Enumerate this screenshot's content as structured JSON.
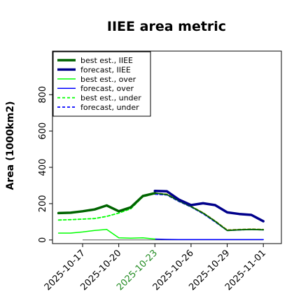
{
  "chart_data": {
    "type": "line",
    "title": "IIEE area metric",
    "xlabel": "",
    "ylabel": "Area (1000km2)",
    "ylim": [
      -20,
      1040
    ],
    "yticks": [
      0,
      200,
      400,
      600,
      800
    ],
    "x_dates": [
      "2025-10-15",
      "2025-10-16",
      "2025-10-17",
      "2025-10-18",
      "2025-10-19",
      "2025-10-20",
      "2025-10-21",
      "2025-10-22",
      "2025-10-23",
      "2025-10-24",
      "2025-10-25",
      "2025-10-26",
      "2025-10-27",
      "2025-10-28",
      "2025-10-29",
      "2025-10-30",
      "2025-10-31",
      "2025-11-01"
    ],
    "xlim": [
      "2025-10-14T12:00",
      "2025-11-02T12:00"
    ],
    "xticks": [
      {
        "date": "2025-10-17",
        "label": "2025-10-17",
        "color": "#000000"
      },
      {
        "date": "2025-10-20",
        "label": "2025-10-20",
        "color": "#000000"
      },
      {
        "date": "2025-10-23",
        "label": "2025-10-23",
        "color": "#228B22"
      },
      {
        "date": "2025-10-26",
        "label": "2025-10-26",
        "color": "#000000"
      },
      {
        "date": "2025-10-29",
        "label": "2025-10-29",
        "color": "#000000"
      },
      {
        "date": "2025-11-01",
        "label": "2025-11-01",
        "color": "#000000"
      }
    ],
    "legend_position": "top-left",
    "series": [
      {
        "name": "best est., IIEE",
        "color": "#006400",
        "style": "solid",
        "weight": "thick",
        "dates": [
          "2025-10-15",
          "2025-10-16",
          "2025-10-17",
          "2025-10-18",
          "2025-10-19",
          "2025-10-20",
          "2025-10-21",
          "2025-10-22",
          "2025-10-23"
        ],
        "values": [
          148,
          150,
          158,
          168,
          190,
          158,
          180,
          242,
          258
        ]
      },
      {
        "name": "forecast, IIEE",
        "color": "#00008B",
        "style": "solid",
        "weight": "thick",
        "dates": [
          "2025-10-23",
          "2025-10-24",
          "2025-10-25",
          "2025-10-26",
          "2025-10-27",
          "2025-10-28",
          "2025-10-29",
          "2025-10-30",
          "2025-10-31",
          "2025-11-01"
        ],
        "values": [
          270,
          268,
          222,
          192,
          202,
          192,
          152,
          143,
          138,
          103
        ]
      },
      {
        "name": "best est., over",
        "color": "#00ff00",
        "style": "solid",
        "weight": "thin",
        "dates": [
          "2025-10-15",
          "2025-10-16",
          "2025-10-17",
          "2025-10-18",
          "2025-10-19",
          "2025-10-20",
          "2025-10-21",
          "2025-10-22",
          "2025-10-23"
        ],
        "values": [
          38,
          38,
          44,
          52,
          58,
          12,
          10,
          12,
          5
        ]
      },
      {
        "name": "forecast, over",
        "color": "#0000ff",
        "style": "solid",
        "weight": "thin",
        "dates": [
          "2025-10-23",
          "2025-10-24",
          "2025-10-25",
          "2025-10-26",
          "2025-10-27",
          "2025-10-28",
          "2025-10-29",
          "2025-10-30",
          "2025-10-31",
          "2025-11-01"
        ],
        "values": [
          5,
          3,
          2,
          2,
          2,
          2,
          2,
          2,
          2,
          2
        ]
      },
      {
        "name": "best est., under",
        "color": "#00ff00",
        "style": "dashed",
        "weight": "normal",
        "dates": [
          "2025-10-15",
          "2025-10-16",
          "2025-10-17",
          "2025-10-18",
          "2025-10-19",
          "2025-10-20",
          "2025-10-21",
          "2025-10-22",
          "2025-10-23"
        ],
        "values": [
          110,
          112,
          115,
          118,
          130,
          148,
          172,
          238,
          255
        ]
      },
      {
        "name": "forecast, under",
        "color": "#0000ff",
        "style": "dashed",
        "weight": "normal",
        "dates": [
          "2025-10-23",
          "2025-10-24",
          "2025-10-25",
          "2025-10-26",
          "2025-10-27",
          "2025-10-28",
          "2025-10-29",
          "2025-10-30",
          "2025-10-31",
          "2025-11-01"
        ],
        "values": [
          252,
          248,
          212,
          182,
          145,
          100,
          52,
          55,
          58,
          56
        ]
      },
      {
        "name": "",
        "color": "#8B8B00",
        "style": "dashed",
        "weight": "normal",
        "dates": [
          "2025-10-23",
          "2025-10-24",
          "2025-10-25",
          "2025-10-26",
          "2025-10-27",
          "2025-10-28",
          "2025-10-29",
          "2025-10-30",
          "2025-10-31",
          "2025-11-01"
        ],
        "values": [
          258,
          252,
          218,
          186,
          150,
          105,
          55,
          58,
          60,
          58
        ]
      },
      {
        "name": "",
        "color": "#006400",
        "style": "solid",
        "weight": "normal",
        "dates": [
          "2025-10-23",
          "2025-10-24",
          "2025-10-25",
          "2025-10-26",
          "2025-10-27",
          "2025-10-28",
          "2025-10-29",
          "2025-10-30",
          "2025-10-31",
          "2025-11-01"
        ],
        "values": [
          258,
          250,
          215,
          184,
          148,
          103,
          52,
          56,
          58,
          56
        ]
      }
    ],
    "baseline": {
      "color": "#555555",
      "value": 0,
      "dates": [
        "2025-10-17",
        "2025-11-01"
      ]
    }
  }
}
